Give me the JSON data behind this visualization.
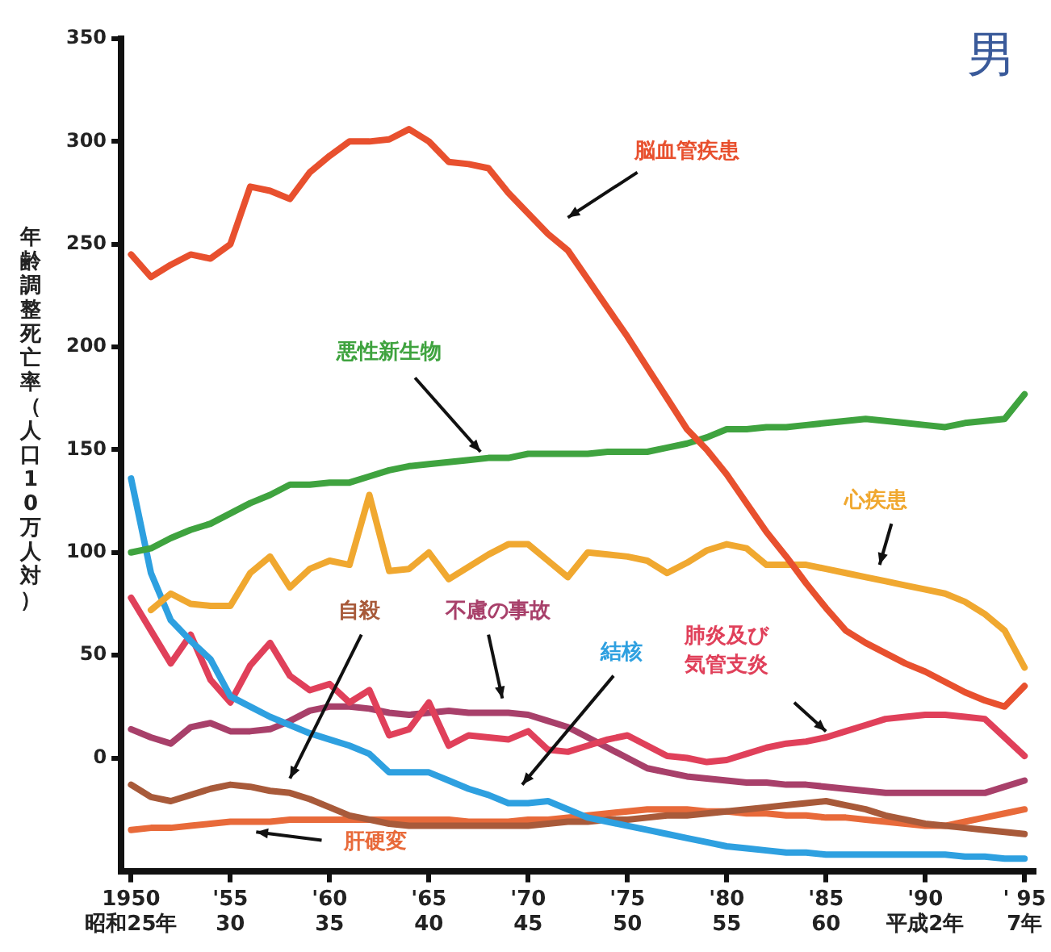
{
  "chart_data": {
    "type": "line",
    "title": "男",
    "ylabel": "年齢調整死亡率（人口10万人対）",
    "categories": [
      "1950\n昭和25年",
      null,
      null,
      null,
      null,
      "'55\n30",
      null,
      null,
      null,
      null,
      "'60\n35",
      null,
      null,
      null,
      null,
      "'65\n40",
      null,
      null,
      null,
      null,
      "'70\n45",
      null,
      null,
      null,
      null,
      "'75\n50",
      null,
      null,
      null,
      null,
      "'80\n55",
      null,
      null,
      null,
      null,
      "'85\n60",
      null,
      null,
      null,
      null,
      "'90\n平成2年",
      null,
      null,
      null,
      null,
      "' 95\n7年"
    ],
    "ylim": [
      -55,
      350
    ],
    "yticks": [
      0,
      50,
      100,
      150,
      200,
      250,
      300,
      350
    ],
    "grid": false,
    "legend": false,
    "marker": "none",
    "line_style": "solid",
    "series": [
      {
        "name": "脳血管疾患",
        "color": "#e8502e",
        "values": [
          245,
          234,
          240,
          245,
          243,
          250,
          278,
          276,
          272,
          285,
          293,
          300,
          300,
          301,
          306,
          300,
          290,
          289,
          287,
          275,
          265,
          255,
          247,
          233,
          219,
          205,
          190,
          175,
          160,
          150,
          138,
          124,
          110,
          98,
          85,
          73,
          62,
          56,
          51,
          46,
          42,
          37,
          32,
          28,
          25,
          35
        ]
      },
      {
        "name": "悪性新生物",
        "color": "#3fa33f",
        "values": [
          100,
          102,
          107,
          111,
          114,
          119,
          124,
          128,
          133,
          133,
          134,
          134,
          137,
          140,
          142,
          143,
          144,
          145,
          146,
          146,
          148,
          148,
          148,
          148,
          149,
          149,
          149,
          151,
          153,
          156,
          160,
          160,
          161,
          161,
          162,
          163,
          164,
          165,
          164,
          163,
          162,
          161,
          163,
          164,
          165,
          177
        ]
      },
      {
        "name": "心疾患",
        "color": "#f0a830",
        "values": [
          null,
          72,
          80,
          75,
          74,
          74,
          90,
          98,
          83,
          92,
          96,
          94,
          128,
          91,
          92,
          100,
          87,
          93,
          99,
          104,
          104,
          96,
          88,
          100,
          99,
          98,
          96,
          90,
          95,
          101,
          104,
          102,
          94,
          94,
          94,
          92,
          90,
          88,
          86,
          84,
          82,
          80,
          76,
          70,
          62,
          44
        ]
      },
      {
        "name": "結核",
        "color": "#2ea0e0",
        "values": [
          136,
          90,
          67,
          57,
          48,
          30,
          25,
          20,
          16,
          12,
          9,
          6,
          2,
          -7,
          -7,
          -7,
          -11,
          -15,
          -18,
          -22,
          -22,
          -21,
          -25,
          -29,
          -31,
          -33,
          -35,
          -37,
          -39,
          -41,
          -43,
          -44,
          -45,
          -46,
          -46,
          -47,
          -47,
          -47,
          -47,
          -47,
          -47,
          -47,
          -48,
          -48,
          -49,
          -49
        ]
      },
      {
        "name": "肺炎及び気管支炎",
        "color": "#e0405a",
        "values": [
          78,
          62,
          46,
          60,
          38,
          27,
          45,
          56,
          40,
          33,
          36,
          27,
          33,
          11,
          14,
          27,
          6,
          11,
          10,
          9,
          13,
          4,
          3,
          6,
          9,
          11,
          6,
          1,
          0,
          -2,
          -1,
          2,
          5,
          7,
          8,
          10,
          13,
          16,
          19,
          20,
          21,
          21,
          20,
          19,
          10,
          1
        ]
      },
      {
        "name": "不慮の事故",
        "color": "#a8406a",
        "values": [
          14,
          10,
          7,
          15,
          17,
          13,
          13,
          14,
          18,
          23,
          25,
          25,
          24,
          22,
          21,
          22,
          23,
          22,
          22,
          22,
          21,
          18,
          15,
          10,
          5,
          0,
          -5,
          -7,
          -9,
          -10,
          -11,
          -12,
          -12,
          -13,
          -13,
          -14,
          -15,
          -16,
          -17,
          -17,
          -17,
          -17,
          -17,
          -17,
          -14,
          -11
        ]
      },
      {
        "name": "自殺",
        "color": "#a85a3a",
        "values": [
          -13,
          -19,
          -21,
          -18,
          -15,
          -13,
          -14,
          -16,
          -17,
          -20,
          -24,
          -28,
          -30,
          -32,
          -33,
          -33,
          -33,
          -33,
          -33,
          -33,
          -33,
          -32,
          -31,
          -31,
          -30,
          -30,
          -29,
          -28,
          -28,
          -27,
          -26,
          -25,
          -24,
          -23,
          -22,
          -21,
          -23,
          -25,
          -28,
          -30,
          -32,
          -33,
          -34,
          -35,
          -36,
          -37
        ]
      },
      {
        "name": "肝硬変",
        "color": "#e86a3a",
        "values": [
          -35,
          -34,
          -34,
          -33,
          -32,
          -31,
          -31,
          -31,
          -30,
          -30,
          -30,
          -30,
          -30,
          -30,
          -30,
          -30,
          -30,
          -31,
          -31,
          -31,
          -30,
          -30,
          -29,
          -28,
          -27,
          -26,
          -25,
          -25,
          -25,
          -26,
          -26,
          -27,
          -27,
          -28,
          -28,
          -29,
          -29,
          -30,
          -31,
          -32,
          -33,
          -33,
          -31,
          -29,
          -27,
          -25
        ]
      }
    ]
  }
}
